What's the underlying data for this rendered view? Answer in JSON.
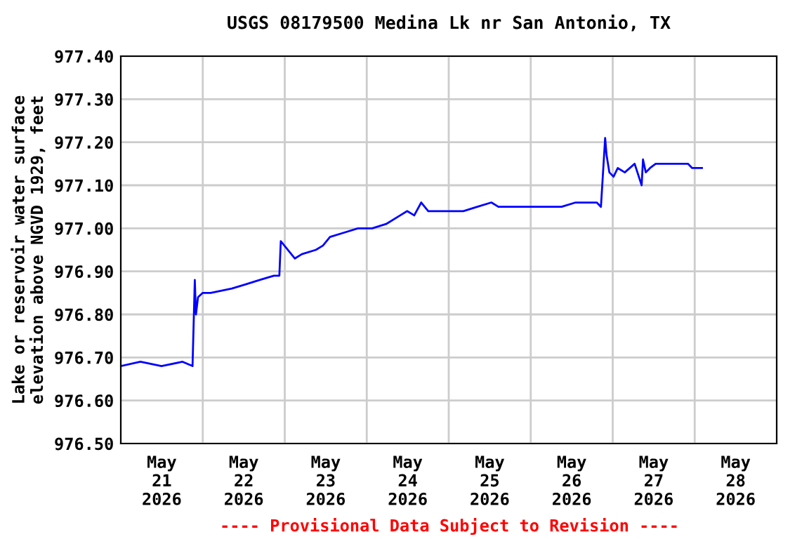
{
  "chart_data": {
    "type": "line",
    "title": "USGS 08179500 Medina Lk nr San Antonio, TX",
    "ylabel": "Lake or reservoir water surface\nelevation above NGVD 1929, feet",
    "annotations": [
      "---- Provisional Data Subject to Revision ----"
    ],
    "x": [
      "2026-05-21T00:00",
      "2026-05-21T05:45",
      "2026-05-21T11:55",
      "2026-05-21T18:05",
      "2026-05-21T21:00",
      "2026-05-21T21:40",
      "2026-05-21T22:00",
      "2026-05-21T22:36",
      "2026-05-22T00:00",
      "2026-05-22T02:18",
      "2026-05-22T08:30",
      "2026-05-22T12:35",
      "2026-05-22T16:40",
      "2026-05-22T20:48",
      "2026-05-22T22:25",
      "2026-05-22T22:50",
      "2026-05-23T02:58",
      "2026-05-23T05:00",
      "2026-05-23T09:07",
      "2026-05-23T11:11",
      "2026-05-23T13:14",
      "2026-05-23T17:20",
      "2026-05-23T21:27",
      "2026-05-24T01:34",
      "2026-05-24T05:40",
      "2026-05-24T09:47",
      "2026-05-24T11:50",
      "2026-05-24T13:54",
      "2026-05-24T15:57",
      "2026-05-24T18:00",
      "2026-05-25T04:16",
      "2026-05-25T08:22",
      "2026-05-25T12:29",
      "2026-05-25T14:32",
      "2026-05-26T09:02",
      "2026-05-26T13:09",
      "2026-05-26T19:19",
      "2026-05-26T20:33",
      "2026-05-26T21:47",
      "2026-05-26T22:12",
      "2026-05-26T23:01",
      "2026-05-27T00:15",
      "2026-05-27T01:29",
      "2026-05-27T03:32",
      "2026-05-27T06:25",
      "2026-05-27T08:28",
      "2026-05-27T08:52",
      "2026-05-27T09:41",
      "2026-05-27T10:55",
      "2026-05-27T12:34",
      "2026-05-27T13:48",
      "2026-05-27T22:01",
      "2026-05-27T23:15",
      "2026-05-28T02:07"
    ],
    "series": [
      {
        "color": "#0000ff",
        "values": [
          976.68,
          976.69,
          976.68,
          976.69,
          976.68,
          976.88,
          976.8,
          976.84,
          976.85,
          976.85,
          976.86,
          976.87,
          976.88,
          976.89,
          976.89,
          976.97,
          976.93,
          976.94,
          976.95,
          976.96,
          976.98,
          976.99,
          977.0,
          977.0,
          977.01,
          977.03,
          977.04,
          977.03,
          977.06,
          977.04,
          977.04,
          977.05,
          977.06,
          977.05,
          977.05,
          977.06,
          977.06,
          977.05,
          977.21,
          977.17,
          977.13,
          977.12,
          977.14,
          977.13,
          977.15,
          977.1,
          977.16,
          977.13,
          977.14,
          977.15,
          977.15,
          977.15,
          977.14,
          977.14
        ]
      }
    ],
    "xlim": [
      "2026-05-21T00:00",
      "2026-05-29T00:00"
    ],
    "xticks": [
      {
        "value": "2026-05-21T12:00",
        "label": "May\n21\n2026"
      },
      {
        "value": "2026-05-22T00:00",
        "label": null
      },
      {
        "value": "2026-05-22T12:00",
        "label": "May\n22\n2026"
      },
      {
        "value": "2026-05-23T00:00",
        "label": null
      },
      {
        "value": "2026-05-23T12:00",
        "label": "May\n23\n2026"
      },
      {
        "value": "2026-05-24T00:00",
        "label": null
      },
      {
        "value": "2026-05-24T12:00",
        "label": "May\n24\n2026"
      },
      {
        "value": "2026-05-25T00:00",
        "label": null
      },
      {
        "value": "2026-05-25T12:00",
        "label": "May\n25\n2026"
      },
      {
        "value": "2026-05-26T00:00",
        "label": null
      },
      {
        "value": "2026-05-26T12:00",
        "label": "May\n26\n2026"
      },
      {
        "value": "2026-05-27T00:00",
        "label": null
      },
      {
        "value": "2026-05-27T12:00",
        "label": "May\n27\n2026"
      },
      {
        "value": "2026-05-28T00:00",
        "label": null
      },
      {
        "value": "2026-05-28T12:00",
        "label": "May\n28\n2026"
      }
    ],
    "ylim": [
      976.5,
      977.4
    ],
    "yticks": [
      {
        "value": 976.5,
        "label": "976.50"
      },
      {
        "value": 976.6,
        "label": "976.60"
      },
      {
        "value": 976.7,
        "label": "976.70"
      },
      {
        "value": 976.8,
        "label": "976.80"
      },
      {
        "value": 976.9,
        "label": "976.90"
      },
      {
        "value": 977.0,
        "label": "977.00"
      },
      {
        "value": 977.1,
        "label": "977.10"
      },
      {
        "value": 977.2,
        "label": "977.20"
      },
      {
        "value": 977.3,
        "label": "977.30"
      },
      {
        "value": 977.4,
        "label": "977.40"
      }
    ],
    "grid": true,
    "line_style": "solid",
    "marker": "none"
  }
}
